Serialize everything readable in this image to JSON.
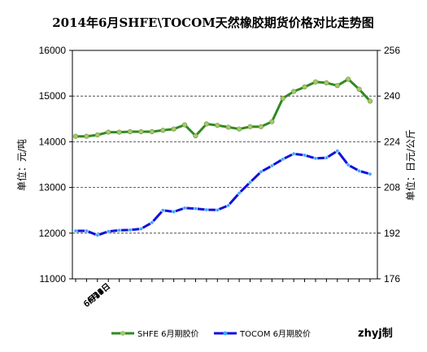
{
  "chart_data": {
    "type": "line",
    "title": "2014年6月SHFE\\TOCOM天然橡胶期货价格对比走势图",
    "ylabel_left": "单位：元/吨",
    "ylabel_right": "单位：日元/公斤",
    "credit": "zhyj制",
    "yleft": {
      "min": 11000,
      "max": 16000,
      "ticks": [
        11000,
        12000,
        13000,
        14000,
        15000,
        16000
      ]
    },
    "yright": {
      "min": 176,
      "max": 256,
      "ticks": [
        176,
        192,
        208,
        224,
        240,
        256
      ]
    },
    "grid": "horizontal-dashed",
    "legend_placement": "bottom",
    "x_tick_labels": [
      "6月3日",
      "6月6日",
      "6月9日",
      "6月12日",
      "6月15日",
      "6月18日",
      "6月21日",
      "6月24日",
      "6月27日",
      "6月30日"
    ],
    "x_days": [
      3,
      4,
      5,
      6,
      7,
      8,
      9,
      10,
      11,
      12,
      13,
      14,
      15,
      16,
      17,
      18,
      19,
      20,
      21,
      22,
      23,
      24,
      25,
      26,
      27,
      28,
      29,
      30
    ],
    "series": [
      {
        "name": "SHFE 6月期胶价",
        "axis": "left",
        "color": "#2e8b22",
        "marker_color": "#a7c76a",
        "values": [
          14120,
          14120,
          14150,
          14210,
          14210,
          14220,
          14220,
          14220,
          14250,
          14280,
          14370,
          14130,
          14390,
          14360,
          14320,
          14280,
          14330,
          14330,
          14440,
          14950,
          15100,
          15200,
          15310,
          15290,
          15230,
          15370,
          15150,
          14890
        ]
      },
      {
        "name": "TOCOM 6月期胶价",
        "axis": "right",
        "color": "#1010dd",
        "marker_color": "#3aa8ff",
        "values": [
          192.8,
          192.8,
          191.3,
          192.6,
          193.0,
          193.1,
          193.5,
          195.7,
          200.0,
          199.5,
          200.8,
          200.6,
          200.2,
          200.1,
          201.7,
          206.0,
          209.8,
          213.5,
          215.6,
          217.9,
          219.8,
          219.3,
          218.2,
          218.4,
          220.8,
          215.9,
          213.8,
          212.7
        ]
      }
    ]
  }
}
